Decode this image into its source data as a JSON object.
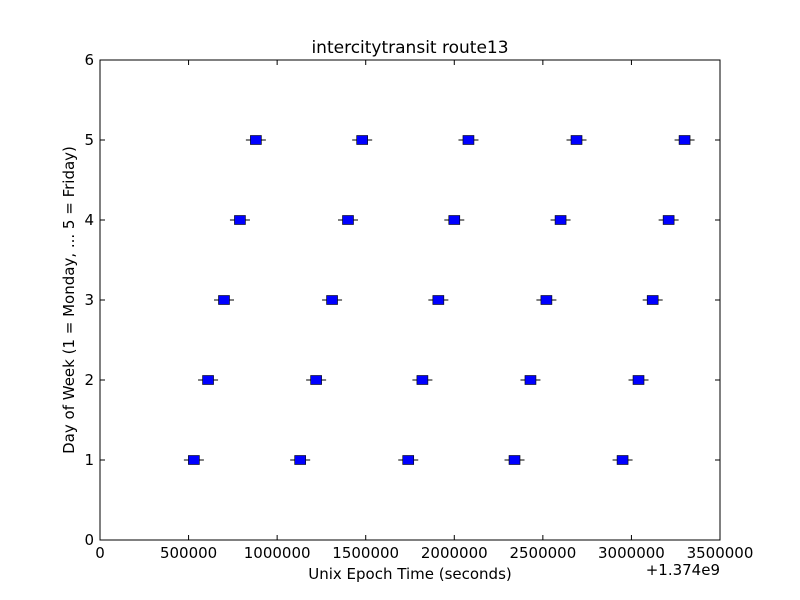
{
  "chart_data": {
    "type": "scatter",
    "title": "intercitytransit route13",
    "xlabel": "Unix Epoch Time (seconds)",
    "ylabel": "Day of Week (1 = Monday, ... 5 = Friday)",
    "x_offset_label": "+1.374e9",
    "xlim": [
      0,
      3500000
    ],
    "ylim": [
      0,
      6
    ],
    "x_tick_labels": [
      "0",
      "500000",
      "1000000",
      "1500000",
      "2000000",
      "2500000",
      "3000000",
      "3500000"
    ],
    "y_tick_labels": [
      "0",
      "1",
      "2",
      "3",
      "4",
      "5",
      "6"
    ],
    "grid": false,
    "legend": "none",
    "marker": "square",
    "marker_color": "#0000ff",
    "x": [
      1374530000,
      1374610000,
      1374700000,
      1374790000,
      1374880000,
      1375130000,
      1375220000,
      1375310000,
      1375400000,
      1375480000,
      1375740000,
      1375820000,
      1375910000,
      1376000000,
      1376080000,
      1376340000,
      1376430000,
      1376520000,
      1376600000,
      1376690000,
      1376950000,
      1377040000,
      1377120000,
      1377210000,
      1377300000
    ],
    "y": [
      1,
      2,
      3,
      4,
      5,
      1,
      2,
      3,
      4,
      5,
      1,
      2,
      3,
      4,
      5,
      1,
      2,
      3,
      4,
      5,
      1,
      2,
      3,
      4,
      5
    ]
  }
}
